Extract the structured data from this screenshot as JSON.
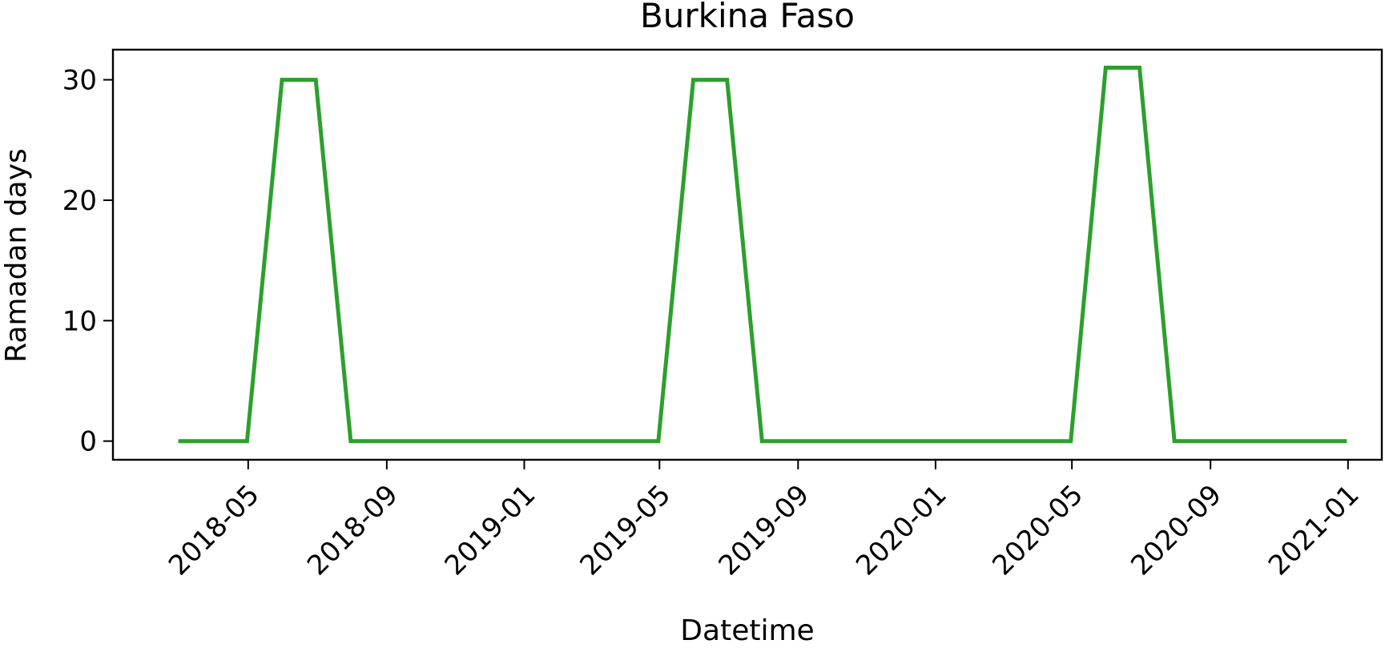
{
  "chart_data": {
    "type": "line",
    "title": "Burkina Faso",
    "xlabel": "Datetime",
    "ylabel": "Ramadan days",
    "x_ticks": [
      "2018-05",
      "2018-09",
      "2019-01",
      "2019-05",
      "2019-09",
      "2020-01",
      "2020-05",
      "2020-09",
      "2021-01"
    ],
    "y_ticks": [
      "0",
      "10",
      "20",
      "30"
    ],
    "xlim": [
      "2018-01-01",
      "2021-01-31"
    ],
    "ylim": [
      -1.55,
      32.5
    ],
    "grid": false,
    "legend": "none",
    "series": [
      {
        "color": "#2ca02c",
        "x": [
          "2018-02-28",
          "2018-03-31",
          "2018-04-30",
          "2018-05-31",
          "2018-06-30",
          "2018-07-31",
          "2018-08-31",
          "2018-09-30",
          "2018-10-31",
          "2018-11-30",
          "2018-12-31",
          "2019-01-31",
          "2019-02-28",
          "2019-03-31",
          "2019-04-30",
          "2019-05-31",
          "2019-06-30",
          "2019-07-31",
          "2019-08-31",
          "2019-09-30",
          "2019-10-31",
          "2019-11-30",
          "2019-12-31",
          "2020-01-31",
          "2020-02-29",
          "2020-03-31",
          "2020-04-30",
          "2020-05-31",
          "2020-06-30",
          "2020-07-31",
          "2020-08-31",
          "2020-09-30",
          "2020-10-31",
          "2020-11-30",
          "2020-12-31"
        ],
        "y": [
          0,
          0,
          0,
          30,
          30,
          0,
          0,
          0,
          0,
          0,
          0,
          0,
          0,
          0,
          0,
          30,
          30,
          0,
          0,
          0,
          0,
          0,
          0,
          0,
          0,
          0,
          0,
          31,
          31,
          0,
          0,
          0,
          0,
          0,
          0
        ]
      }
    ]
  }
}
